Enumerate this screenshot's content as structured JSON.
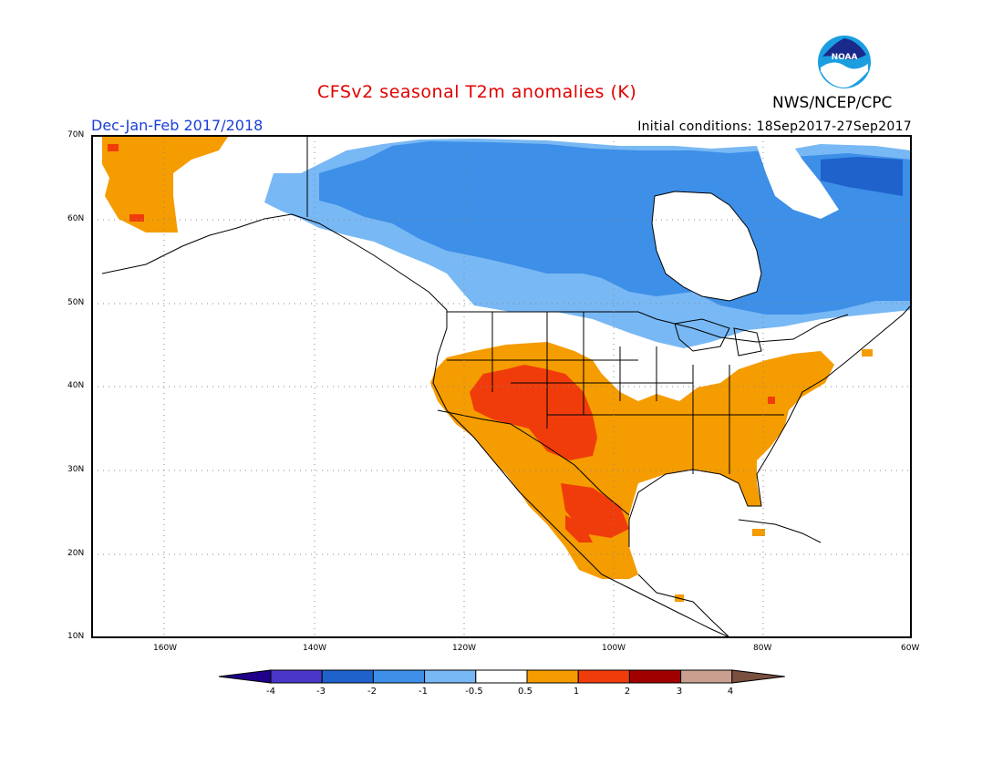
{
  "title": "CFSv2 seasonal T2m anomalies (K)",
  "period": "Dec-Jan-Feb 2017/2018",
  "initial_conditions": "Initial conditions: 18Sep2017-27Sep2017",
  "organization": "NWS/NCEP/CPC",
  "logo_text": "NOAA",
  "lat_labels": [
    "70N",
    "60N",
    "50N",
    "40N",
    "30N",
    "20N",
    "10N"
  ],
  "lon_labels": [
    "160W",
    "140W",
    "120W",
    "100W",
    "80W",
    "60W"
  ],
  "colorbar": {
    "ticks": [
      "-4",
      "-3",
      "-2",
      "-1",
      "-0.5",
      "0.5",
      "1",
      "2",
      "3",
      "4"
    ],
    "colors": [
      "#20008a",
      "#4a36c8",
      "#1f62cc",
      "#3d8fe8",
      "#78b8f4",
      "#ffffff",
      "#f59c00",
      "#f03c0a",
      "#a00000",
      "#c9a090",
      "#7a5040"
    ]
  }
}
